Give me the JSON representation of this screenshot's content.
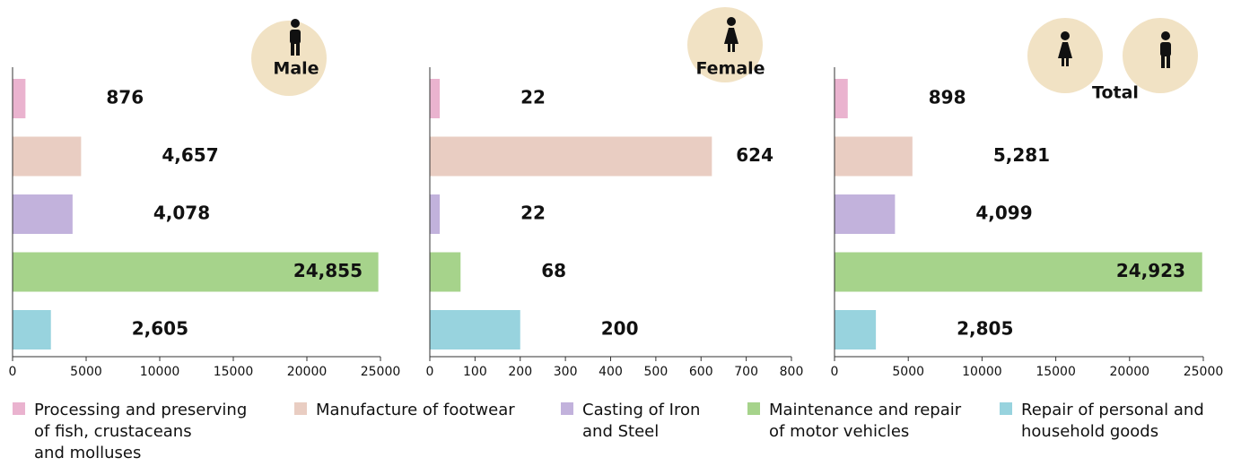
{
  "chart_data": [
    {
      "type": "bar",
      "orientation": "horizontal",
      "title": "Male",
      "values": [
        876,
        4657,
        4078,
        24855,
        2605
      ],
      "value_labels": [
        "876",
        "4,657",
        "4,078",
        "24,855",
        "2,605"
      ],
      "xlim": [
        0,
        25000
      ],
      "xticks": [
        0,
        5000,
        10000,
        15000,
        20000,
        25000
      ]
    },
    {
      "type": "bar",
      "orientation": "horizontal",
      "title": "Female",
      "values": [
        22,
        624,
        22,
        68,
        200
      ],
      "value_labels": [
        "22",
        "624",
        "22",
        "68",
        "200"
      ],
      "xlim": [
        0,
        800
      ],
      "xticks": [
        0,
        100,
        200,
        300,
        400,
        500,
        600,
        700,
        800
      ]
    },
    {
      "type": "bar",
      "orientation": "horizontal",
      "title": "Total",
      "values": [
        898,
        5281,
        4099,
        24923,
        2805
      ],
      "value_labels": [
        "898",
        "5,281",
        "4,099",
        "24,923",
        "2,805"
      ],
      "xlim": [
        0,
        25000
      ],
      "xticks": [
        0,
        5000,
        10000,
        15000,
        20000,
        25000
      ]
    }
  ],
  "legend": {
    "items": [
      {
        "label": [
          "Processing and preserving",
          "of fish, crustaceans",
          "and molluses"
        ],
        "color": "#eab3cf"
      },
      {
        "label": [
          "Manufacture of footwear"
        ],
        "color": "#e9cdc2"
      },
      {
        "label": [
          "Casting of Iron",
          "and Steel"
        ],
        "color": "#c2b2dc"
      },
      {
        "label": [
          "Maintenance and repair",
          "of motor vehicles"
        ],
        "color": "#a6d38b"
      },
      {
        "label": [
          "Repair of personal and",
          "household goods"
        ],
        "color": "#98d3de"
      }
    ]
  }
}
